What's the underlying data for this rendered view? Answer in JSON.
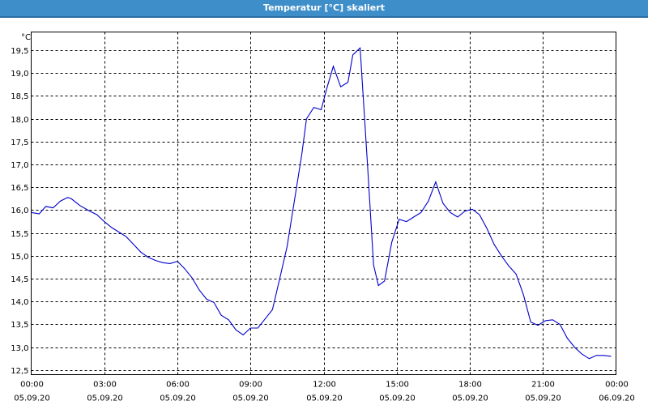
{
  "window": {
    "title": "Temperatur [°C] skaliert"
  },
  "colors": {
    "titlebar": "#3d8ec9",
    "line": "#0000cc",
    "grid": "#000000"
  },
  "chart_data": {
    "type": "line",
    "title": "Temperatur [°C] skaliert",
    "ylabel": "°C",
    "xlabel": "",
    "grid": true,
    "legend": "none",
    "ylim": [
      12.4,
      19.9
    ],
    "xlim": [
      0,
      24
    ],
    "y_ticks": [
      "12,5",
      "13,0",
      "13,5",
      "14,0",
      "14,5",
      "15,0",
      "15,5",
      "16,0",
      "16,5",
      "17,0",
      "17,5",
      "18,0",
      "18,5",
      "19,0",
      "19,5"
    ],
    "x_ticks": [
      {
        "time": "00:00",
        "date": "05.09.20"
      },
      {
        "time": "03:00",
        "date": "05.09.20"
      },
      {
        "time": "06:00",
        "date": "05.09.20"
      },
      {
        "time": "09:00",
        "date": "05.09.20"
      },
      {
        "time": "12:00",
        "date": "05.09.20"
      },
      {
        "time": "15:00",
        "date": "05.09.20"
      },
      {
        "time": "18:00",
        "date": "05.09.20"
      },
      {
        "time": "21:00",
        "date": "05.09.20"
      },
      {
        "time": "00:00",
        "date": "06.09.20"
      }
    ],
    "series": [
      {
        "x": [
          0.0,
          0.33,
          0.6,
          0.9,
          1.2,
          1.5,
          1.65,
          2.0,
          2.4,
          2.7,
          3.0,
          3.3,
          3.6,
          3.9,
          4.2,
          4.5,
          4.8,
          5.1,
          5.4,
          5.7,
          6.0,
          6.3,
          6.6,
          6.9,
          7.2,
          7.5,
          7.8,
          8.1,
          8.4,
          8.7,
          9.0,
          9.3,
          9.6,
          9.9,
          10.2,
          10.5,
          10.8,
          11.1,
          11.3,
          11.6,
          11.9,
          12.15,
          12.4,
          12.7,
          13.0,
          13.2,
          13.5,
          13.8,
          14.05,
          14.25,
          14.5,
          14.8,
          15.1,
          15.4,
          15.7,
          16.0,
          16.3,
          16.6,
          16.9,
          17.2,
          17.5,
          17.8,
          18.1,
          18.4,
          18.7,
          19.0,
          19.3,
          19.6,
          19.9,
          20.2,
          20.5,
          20.8,
          21.1,
          21.4,
          21.7,
          22.0,
          22.3,
          22.6,
          22.9,
          23.2,
          23.5,
          23.8
        ],
        "y": [
          15.95,
          15.92,
          16.08,
          16.05,
          16.2,
          16.28,
          16.25,
          16.1,
          15.98,
          15.9,
          15.75,
          15.62,
          15.52,
          15.42,
          15.25,
          15.08,
          14.97,
          14.9,
          14.85,
          14.83,
          14.88,
          14.72,
          14.52,
          14.25,
          14.05,
          13.98,
          13.7,
          13.6,
          13.38,
          13.27,
          13.42,
          13.42,
          13.62,
          13.82,
          14.5,
          15.2,
          16.2,
          17.2,
          18.0,
          18.25,
          18.2,
          18.7,
          19.15,
          18.7,
          18.8,
          19.4,
          19.55,
          17.0,
          14.8,
          14.35,
          14.45,
          15.3,
          15.8,
          15.75,
          15.85,
          15.95,
          16.2,
          16.62,
          16.15,
          15.95,
          15.85,
          15.98,
          16.02,
          15.9,
          15.6,
          15.25,
          15.0,
          14.78,
          14.6,
          14.15,
          13.55,
          13.48,
          13.58,
          13.6,
          13.5,
          13.2,
          13.0,
          12.85,
          12.75,
          12.82,
          12.82,
          12.8
        ]
      }
    ]
  }
}
